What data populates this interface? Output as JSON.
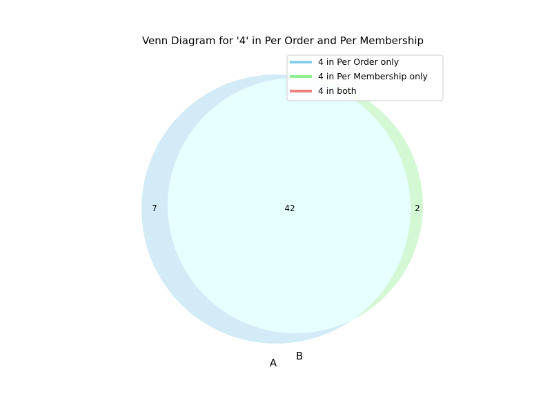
{
  "chart_data": {
    "type": "venn",
    "title": "Venn Diagram for '4' in Per Order and Per Membership",
    "sets": [
      {
        "label": "A",
        "color": "#87ceeb"
      },
      {
        "label": "B",
        "color": "#90ee90"
      }
    ],
    "regions": {
      "a_only": 7,
      "b_only": 2,
      "both": 42
    },
    "legend": {
      "placement": "top-right",
      "entries": [
        {
          "label": "4 in Per Order only",
          "color": "#87ceeb"
        },
        {
          "label": "4 in Per Membership only",
          "color": "#90ee90"
        },
        {
          "label": "4 in both",
          "color": "#f08080"
        }
      ]
    }
  },
  "colors": {
    "a_fill": "#d2ebf6",
    "b_fill": "#d3f8d3",
    "overlap_fill": "#e6ffff"
  }
}
